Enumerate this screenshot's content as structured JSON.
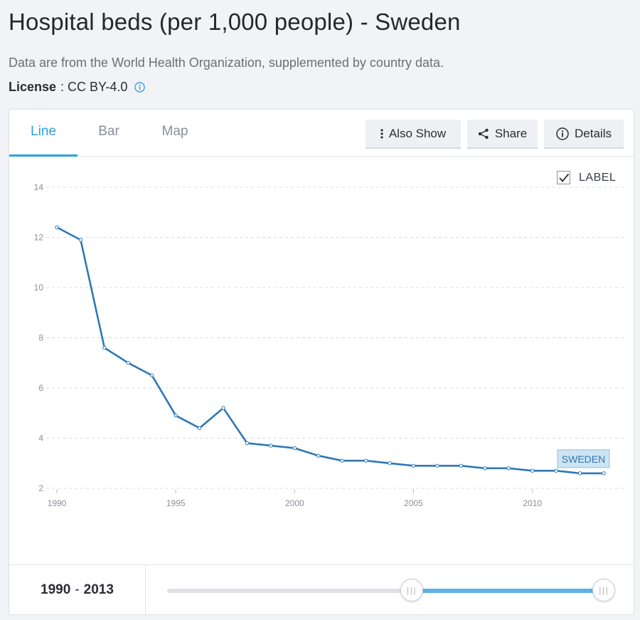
{
  "page": {
    "title": "Hospital beds (per 1,000 people) - Sweden",
    "subtitle": "Data are from the World Health Organization, supplemented by country data.",
    "license_label": "License",
    "license_value": ": CC BY-4.0"
  },
  "tabs": [
    {
      "label": "Line",
      "active": true
    },
    {
      "label": "Bar",
      "active": false
    },
    {
      "label": "Map",
      "active": false
    }
  ],
  "toolbar": {
    "also_show": "Also Show",
    "share": "Share",
    "details": "Details"
  },
  "label_toggle": {
    "label": "LABEL",
    "checked": true
  },
  "range": {
    "start": "1990",
    "separator": "-",
    "end": "2013",
    "fraction_start": 0.56,
    "fraction_end": 1.0
  },
  "colors": {
    "line": "#2f78b5",
    "accent": "#2aa2e0",
    "series_label_bg": "#cde4f3"
  },
  "chart_data": {
    "type": "line",
    "title": "Hospital beds (per 1,000 people) - Sweden",
    "xlabel": "",
    "ylabel": "",
    "xlim": [
      1990,
      2013
    ],
    "ylim": [
      2,
      14
    ],
    "x_ticks": [
      1990,
      1995,
      2000,
      2005,
      2010
    ],
    "y_ticks": [
      2,
      4,
      6,
      8,
      10,
      12,
      14
    ],
    "grid": true,
    "series": [
      {
        "name": "SWEDEN",
        "x": [
          1990,
          1991,
          1992,
          1993,
          1994,
          1995,
          1996,
          1997,
          1998,
          1999,
          2000,
          2001,
          2002,
          2003,
          2004,
          2005,
          2006,
          2007,
          2008,
          2009,
          2010,
          2011,
          2012,
          2013
        ],
        "values": [
          12.4,
          11.9,
          7.6,
          7.0,
          6.5,
          4.9,
          4.4,
          5.2,
          3.8,
          3.7,
          3.6,
          3.3,
          3.1,
          3.1,
          3.0,
          2.9,
          2.9,
          2.9,
          2.8,
          2.8,
          2.7,
          2.7,
          2.6,
          2.6
        ]
      }
    ]
  }
}
